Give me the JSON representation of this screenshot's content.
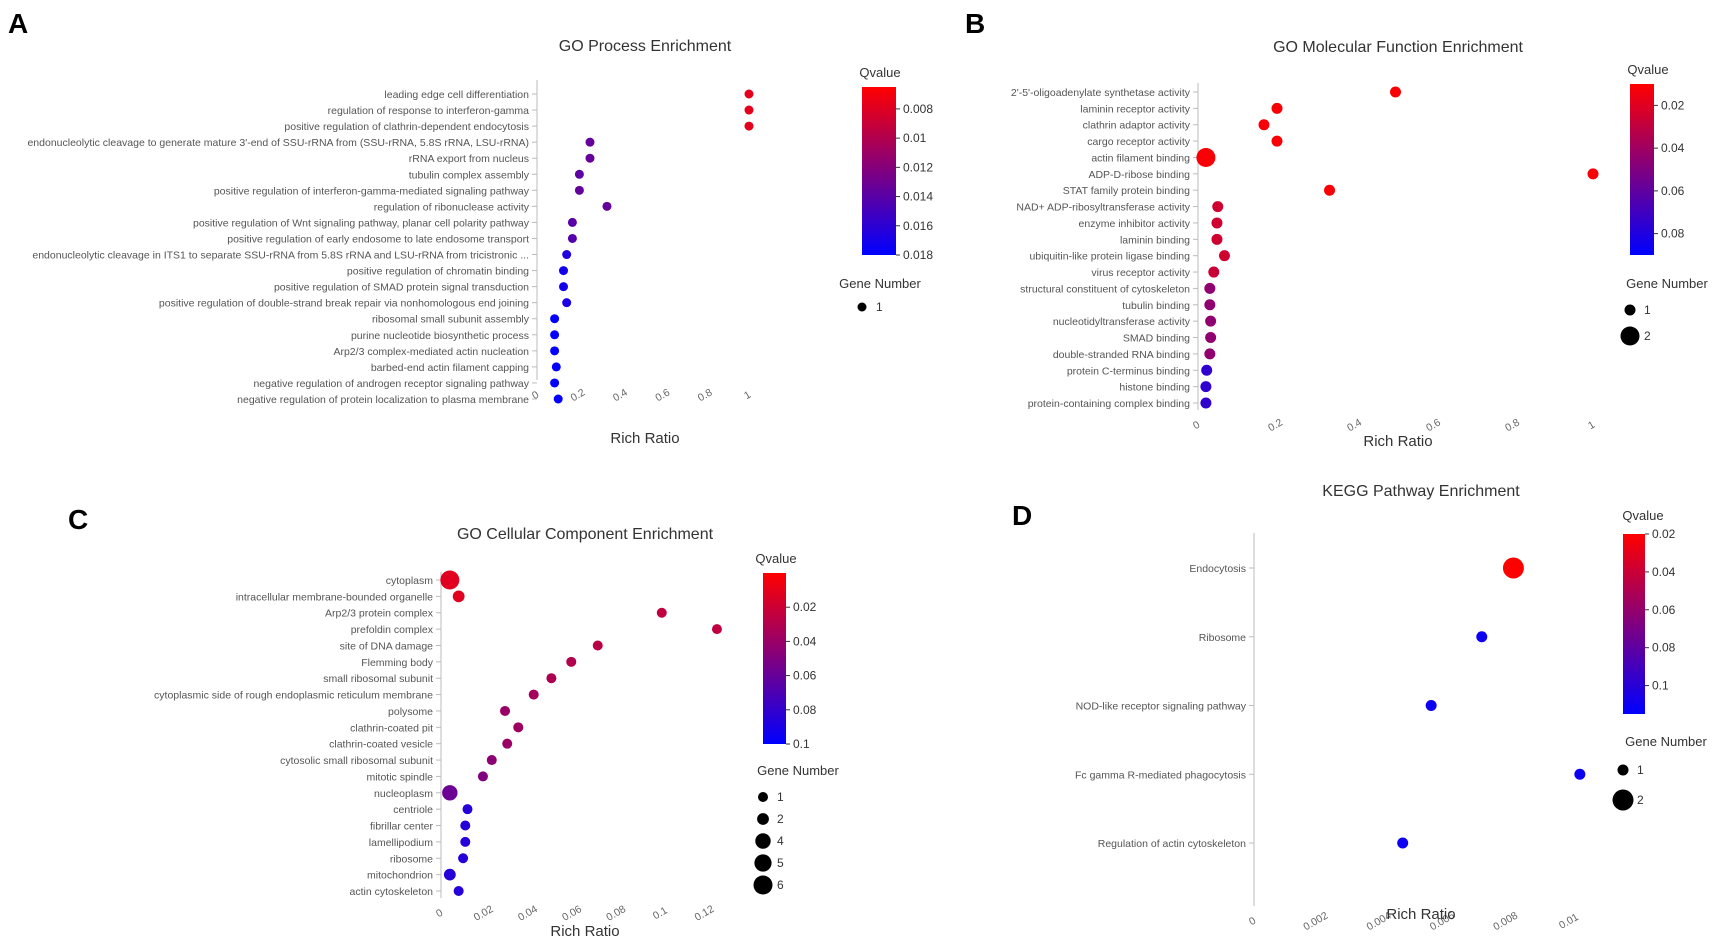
{
  "chart_data": [
    {
      "panel": "A",
      "type": "scatter",
      "title": "GO Process Enrichment",
      "xlabel": "Rich Ratio",
      "ylabel": "",
      "xlim": [
        0,
        1
      ],
      "xticks": [
        "0",
        "0.2",
        "0.4",
        "0.6",
        "0.8",
        "1"
      ],
      "categories": [
        "leading edge cell differentiation",
        "regulation of response to interferon-gamma",
        "positive regulation of clathrin-dependent endocytosis",
        "endonucleolytic cleavage to generate mature 3'-end of SSU-rRNA from (SSU-rRNA, 5.8S rRNA, LSU-rRNA)",
        "rRNA export from nucleus",
        "tubulin complex assembly",
        "positive regulation of interferon-gamma-mediated signaling pathway",
        "regulation of ribonuclease activity",
        "positive regulation of Wnt signaling pathway, planar cell polarity pathway",
        "positive regulation of early endosome to late endosome transport",
        "endonucleolytic cleavage in ITS1 to separate SSU-rRNA from 5.8S rRNA and LSU-rRNA from tricistronic ...",
        "positive regulation of chromatin binding",
        "positive regulation of SMAD protein signal transduction",
        "positive regulation of double-strand break repair via nonhomologous end joining",
        "ribosomal small subunit assembly",
        "purine nucleotide biosynthetic process",
        "Arp2/3 complex-mediated actin nucleation",
        "barbed-end actin filament capping",
        "negative regulation of androgen receptor signaling pathway",
        "negative regulation of protein localization to plasma membrane"
      ],
      "rich_ratio": [
        1.0,
        1.0,
        1.0,
        0.25,
        0.25,
        0.2,
        0.2,
        0.33,
        0.167,
        0.167,
        0.14,
        0.125,
        0.125,
        0.14,
        0.083,
        0.083,
        0.083,
        0.091,
        0.083,
        0.1
      ],
      "qvalue": [
        0.0078,
        0.0078,
        0.0078,
        0.0135,
        0.0135,
        0.0138,
        0.0135,
        0.0135,
        0.014,
        0.0142,
        0.0165,
        0.0172,
        0.0172,
        0.0168,
        0.0178,
        0.0178,
        0.0178,
        0.0178,
        0.0178,
        0.0178
      ],
      "gene_number": [
        1,
        1,
        1,
        1,
        1,
        1,
        1,
        1,
        1,
        1,
        1,
        1,
        1,
        1,
        1,
        1,
        1,
        1,
        1,
        1
      ],
      "qvalue_legend": {
        "title": "Qvalue",
        "range": [
          0.0065,
          0.018
        ],
        "ticks": [
          "0.008",
          "0.01",
          "0.012",
          "0.014",
          "0.016",
          "0.018"
        ],
        "tick_values": [
          0.008,
          0.01,
          0.012,
          0.014,
          0.016,
          0.018
        ]
      },
      "size_legend": {
        "title": "Gene Number",
        "entries": [
          "1"
        ],
        "entry_values": [
          1
        ]
      },
      "color_low": "#ff0000",
      "color_mid": "#800080",
      "color_high": "#0000ff"
    },
    {
      "panel": "B",
      "type": "scatter",
      "title": "GO Molecular Function Enrichment",
      "xlabel": "Rich Ratio",
      "ylabel": "",
      "xlim": [
        0,
        1
      ],
      "xticks": [
        "0",
        "0.2",
        "0.4",
        "0.6",
        "0.8",
        "1"
      ],
      "categories": [
        "2'-5'-oligoadenylate synthetase activity",
        "laminin receptor activity",
        "clathrin adaptor activity",
        "cargo receptor activity",
        "actin filament binding",
        "ADP-D-ribose binding",
        "STAT family protein binding",
        "NAD+ ADP-ribosyltransferase activity",
        "enzyme inhibitor activity",
        "laminin binding",
        "ubiquitin-like protein ligase binding",
        "virus receptor activity",
        "structural constituent of cytoskeleton",
        "tubulin binding",
        "nucleotidyltransferase activity",
        "SMAD binding",
        "double-stranded RNA binding",
        "protein C-terminus binding",
        "histone binding",
        "protein-containing complex binding"
      ],
      "rich_ratio": [
        0.5,
        0.2,
        0.167,
        0.2,
        0.02,
        1.0,
        0.333,
        0.05,
        0.048,
        0.048,
        0.067,
        0.04,
        0.03,
        0.03,
        0.032,
        0.032,
        0.03,
        0.022,
        0.02,
        0.02
      ],
      "qvalue": [
        0.012,
        0.012,
        0.012,
        0.012,
        0.012,
        0.012,
        0.012,
        0.025,
        0.025,
        0.025,
        0.025,
        0.027,
        0.045,
        0.045,
        0.045,
        0.045,
        0.045,
        0.075,
        0.075,
        0.075
      ],
      "gene_number": [
        1,
        1,
        1,
        1,
        2,
        1,
        1,
        1,
        1,
        1,
        1,
        1,
        1,
        1,
        1,
        1,
        1,
        1,
        1,
        1
      ],
      "qvalue_legend": {
        "title": "Qvalue",
        "range": [
          0.01,
          0.09
        ],
        "ticks": [
          "0.02",
          "0.04",
          "0.06",
          "0.08"
        ],
        "tick_values": [
          0.02,
          0.04,
          0.06,
          0.08
        ]
      },
      "size_legend": {
        "title": "Gene Number",
        "entries": [
          "1",
          "2"
        ],
        "entry_values": [
          1,
          2
        ]
      },
      "color_low": "#ff0000",
      "color_mid": "#800080",
      "color_high": "#0000ff"
    },
    {
      "panel": "C",
      "type": "scatter",
      "title": "GO Cellular Component Enrichment",
      "xlabel": "Rich Ratio",
      "ylabel": "",
      "xlim": [
        0,
        0.13
      ],
      "xticks": [
        "0",
        "0.02",
        "0.04",
        "0.06",
        "0.08",
        "0.1",
        "0.12"
      ],
      "categories": [
        "cytoplasm",
        "intracellular membrane-bounded organelle",
        "Arp2/3 protein complex",
        "prefoldin complex",
        "site of DNA damage",
        "Flemming body",
        "small ribosomal subunit",
        "cytoplasmic side of rough endoplasmic reticulum membrane",
        "polysome",
        "clathrin-coated pit",
        "clathrin-coated vesicle",
        "cytosolic small ribosomal subunit",
        "mitotic spindle",
        "nucleoplasm",
        "centriole",
        "fibrillar center",
        "lamellipodium",
        "ribosome",
        "mitochondrion",
        "actin cytoskeleton"
      ],
      "rich_ratio": [
        0.004,
        0.008,
        0.1,
        0.125,
        0.071,
        0.059,
        0.05,
        0.042,
        0.029,
        0.035,
        0.03,
        0.023,
        0.019,
        0.004,
        0.012,
        0.011,
        0.011,
        0.01,
        0.004,
        0.008
      ],
      "qvalue": [
        0.012,
        0.012,
        0.025,
        0.025,
        0.027,
        0.03,
        0.032,
        0.035,
        0.04,
        0.038,
        0.04,
        0.045,
        0.05,
        0.058,
        0.085,
        0.085,
        0.085,
        0.085,
        0.085,
        0.085
      ],
      "gene_number": [
        6,
        2,
        1,
        1,
        1,
        1,
        1,
        1,
        1,
        1,
        1,
        1,
        1,
        4,
        1,
        1,
        1,
        1,
        2,
        1
      ],
      "qvalue_legend": {
        "title": "Qvalue",
        "range": [
          0.0,
          0.1
        ],
        "ticks": [
          "0.02",
          "0.04",
          "0.06",
          "0.08",
          "0.1"
        ],
        "tick_values": [
          0.02,
          0.04,
          0.06,
          0.08,
          0.1
        ]
      },
      "size_legend": {
        "title": "Gene Number",
        "entries": [
          "1",
          "2",
          "4",
          "5",
          "6"
        ],
        "entry_values": [
          1,
          2,
          4,
          5,
          6
        ]
      },
      "color_low": "#ff0000",
      "color_mid": "#800080",
      "color_high": "#0000ff"
    },
    {
      "panel": "D",
      "type": "scatter",
      "title": "KEGG Pathway Enrichment",
      "xlabel": "Rich Ratio",
      "ylabel": "",
      "xlim": [
        0,
        0.011
      ],
      "xticks": [
        "0",
        "0.002",
        "0.004",
        "0.006",
        "0.008",
        "0.01"
      ],
      "categories": [
        "Endocytosis",
        "Ribosome",
        "NOD-like receptor signaling pathway",
        "Fc gamma R-mediated phagocytosis",
        "Regulation of actin cytoskeleton"
      ],
      "rich_ratio": [
        0.0082,
        0.0072,
        0.0056,
        0.0103,
        0.0047
      ],
      "qvalue": [
        0.02,
        0.11,
        0.11,
        0.11,
        0.11
      ],
      "gene_number": [
        2,
        1,
        1,
        1,
        1
      ],
      "qvalue_legend": {
        "title": "Qvalue",
        "range": [
          0.02,
          0.115
        ],
        "ticks": [
          "0.02",
          "0.04",
          "0.06",
          "0.08",
          "0.1"
        ],
        "tick_values": [
          0.02,
          0.04,
          0.06,
          0.08,
          0.1
        ]
      },
      "size_legend": {
        "title": "Gene Number",
        "entries": [
          "1",
          "2"
        ],
        "entry_values": [
          1,
          2
        ]
      },
      "color_low": "#ff0000",
      "color_mid": "#800080",
      "color_high": "#0000ff"
    }
  ]
}
